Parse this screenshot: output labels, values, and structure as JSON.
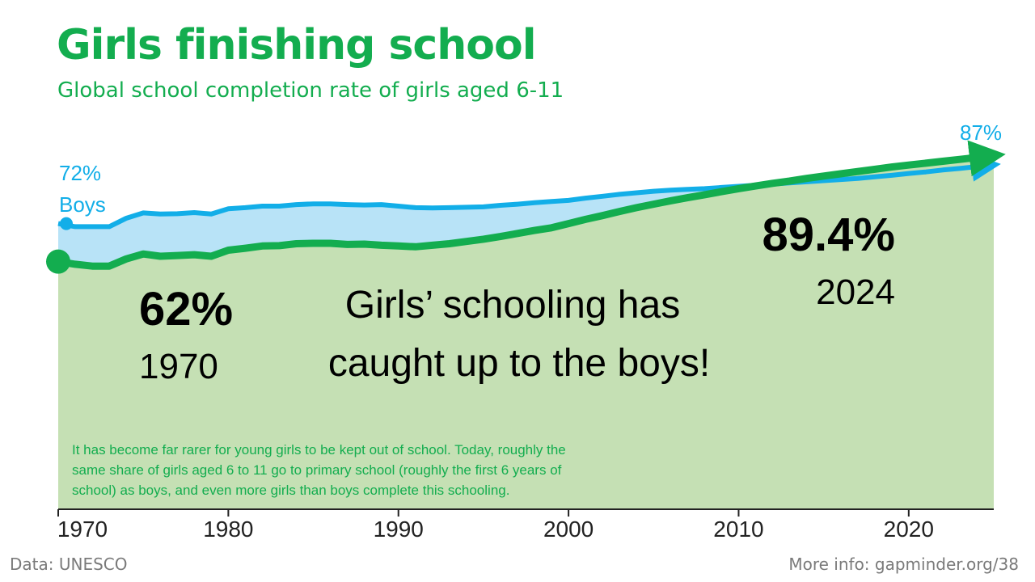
{
  "title": "Girls finishing school",
  "subtitle": "Global school completion rate of girls aged 6-11",
  "chart_data": {
    "type": "area",
    "xlim": [
      1970,
      2025
    ],
    "ylim": [
      0,
      100
    ],
    "x_ticks": [
      1970,
      1980,
      1990,
      2000,
      2010,
      2020
    ],
    "series": [
      {
        "name": "Girls",
        "color": "#13ad4f",
        "fill": "#c5e0b4",
        "x": [
          1970,
          1971,
          1972,
          1973,
          1974,
          1975,
          1976,
          1977,
          1978,
          1979,
          1980,
          1981,
          1982,
          1983,
          1984,
          1985,
          1986,
          1987,
          1988,
          1989,
          1990,
          1991,
          1992,
          1993,
          1994,
          1995,
          1996,
          1997,
          1998,
          1999,
          2000,
          2001,
          2002,
          2003,
          2004,
          2005,
          2006,
          2007,
          2008,
          2009,
          2010,
          2011,
          2012,
          2013,
          2014,
          2015,
          2016,
          2017,
          2018,
          2019,
          2020,
          2021,
          2022,
          2023,
          2024
        ],
        "values": [
          62,
          61.3,
          60.8,
          60.8,
          62.7,
          64,
          63.4,
          63.6,
          63.8,
          63.4,
          65,
          65.5,
          66.1,
          66.2,
          66.7,
          66.8,
          66.8,
          66.5,
          66.6,
          66.3,
          66.1,
          65.9,
          66.3,
          66.7,
          67.3,
          67.9,
          68.6,
          69.4,
          70.2,
          70.9,
          72,
          73.1,
          74.1,
          75.2,
          76.2,
          77.1,
          78,
          78.8,
          79.6,
          80.4,
          81.2,
          81.9,
          82.6,
          83.2,
          83.9,
          84.5,
          85.1,
          85.7,
          86.3,
          86.9,
          87.4,
          87.9,
          88.4,
          88.9,
          89.4
        ]
      },
      {
        "name": "Boys",
        "color": "#12aee8",
        "fill": "#b8e3f7",
        "x": [
          1970,
          1971,
          1972,
          1973,
          1974,
          1975,
          1976,
          1977,
          1978,
          1979,
          1980,
          1981,
          1982,
          1983,
          1984,
          1985,
          1986,
          1987,
          1988,
          1989,
          1990,
          1991,
          1992,
          1993,
          1994,
          1995,
          1996,
          1997,
          1998,
          1999,
          2000,
          2001,
          2002,
          2003,
          2004,
          2005,
          2006,
          2007,
          2008,
          2009,
          2010,
          2011,
          2012,
          2013,
          2014,
          2015,
          2016,
          2017,
          2018,
          2019,
          2020,
          2021,
          2022,
          2023,
          2024
        ],
        "values": [
          72,
          71.2,
          71.2,
          71.2,
          73.4,
          74.8,
          74.5,
          74.6,
          74.9,
          74.5,
          75.9,
          76.2,
          76.6,
          76.6,
          77,
          77.2,
          77.2,
          77,
          76.9,
          77,
          76.6,
          76.2,
          76.1,
          76.2,
          76.3,
          76.4,
          76.8,
          77.1,
          77.5,
          77.8,
          78.1,
          78.7,
          79.2,
          79.7,
          80.1,
          80.5,
          80.8,
          81,
          81.2,
          81.5,
          81.8,
          82.1,
          82.4,
          82.7,
          83,
          83.3,
          83.6,
          83.9,
          84.3,
          84.7,
          85.2,
          85.6,
          86.1,
          86.5,
          87
        ]
      }
    ],
    "annotations": {
      "boys_start_value": "72%",
      "boys_label": "Boys",
      "boys_end_value": "87%",
      "girls_start_value": "62%",
      "girls_start_year": "1970",
      "girls_end_value": "89.4%",
      "girls_end_year": "2024",
      "headline_line1": "Girls’ schooling has",
      "headline_line2": "caught up to the boys!",
      "note_line1": "It has become far rarer for young girls to be kept out of school. Today, roughly the",
      "note_line2": "same share of girls aged 6 to 11 go to primary school (roughly the first 6 years of",
      "note_line3": "school) as boys, and even more girls than boys complete this schooling."
    }
  },
  "footer": {
    "source": "Data: UNESCO",
    "more_info": "More info: gapminder.org/38"
  }
}
